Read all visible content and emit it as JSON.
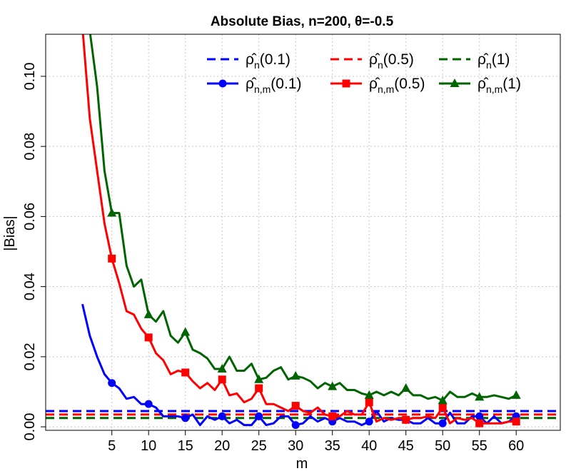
{
  "chart_data": {
    "type": "line",
    "title": "Absolute Bias, n=200, θ=-0.5",
    "xlabel": "m",
    "ylabel": "|Bias|",
    "xlim": [
      -4,
      66
    ],
    "ylim": [
      -0.001,
      0.112
    ],
    "xticks": [
      5,
      10,
      15,
      20,
      25,
      30,
      35,
      40,
      45,
      50,
      55,
      60
    ],
    "yticks": [
      0.0,
      0.02,
      0.04,
      0.06,
      0.08,
      0.1
    ],
    "ytick_labels": [
      "0.00",
      "0.02",
      "0.04",
      "0.06",
      "0.08",
      "0.10"
    ],
    "grid": true,
    "legend_position": "top-right",
    "reference_lines": [
      {
        "name": "(0.1)",
        "symbol": "ρ̂",
        "sub": "n",
        "color": "#0000ff",
        "style": "dashed",
        "value": 0.0045
      },
      {
        "name": "(0.5)",
        "symbol": "ρ̂",
        "sub": "n",
        "color": "#ff0000",
        "style": "dashed",
        "value": 0.0035
      },
      {
        "name": "(1)",
        "symbol": "ρ̂",
        "sub": "n",
        "color": "#006400",
        "style": "dashed",
        "value": 0.0025
      }
    ],
    "series": [
      {
        "name": "(0.1)",
        "symbol": "ρ̂",
        "sub": "n,m",
        "color": "#0000ff",
        "marker": "circle",
        "marker_every": 5,
        "x": [
          1,
          2,
          3,
          4,
          5,
          6,
          7,
          8,
          9,
          10,
          11,
          12,
          13,
          14,
          15,
          16,
          17,
          18,
          19,
          20,
          21,
          22,
          23,
          24,
          25,
          26,
          27,
          28,
          29,
          30,
          31,
          32,
          33,
          34,
          35,
          36,
          37,
          38,
          39,
          40,
          41,
          42,
          43,
          44,
          45,
          46,
          47,
          48,
          49,
          50,
          51,
          52,
          53,
          54,
          55,
          56,
          57,
          58,
          59,
          60
        ],
        "y": [
          0.035,
          0.026,
          0.02,
          0.015,
          0.0125,
          0.011,
          0.008,
          0.0085,
          0.0065,
          0.0065,
          0.0055,
          0.003,
          0.003,
          0.003,
          0.0025,
          0.0035,
          0.0005,
          0.003,
          0.002,
          0.003,
          0.001,
          0.002,
          0.0005,
          0.0005,
          0.003,
          0.0005,
          0.001,
          0.003,
          0.003,
          0.0005,
          0.001,
          0.003,
          0.0015,
          0.0025,
          0.0015,
          0.0025,
          0.0015,
          0.0015,
          0.0005,
          0.0015,
          0.0045,
          0.0015,
          0.0025,
          0.002,
          0.002,
          0.001,
          0.001,
          0.0025,
          0.001,
          0.001,
          0.004,
          0.001,
          0.001,
          0.003,
          0.003,
          0.001,
          0.003,
          0.001,
          0.0015,
          0.003
        ]
      },
      {
        "name": "(0.5)",
        "symbol": "ρ̂",
        "sub": "n,m",
        "color": "#ff0000",
        "marker": "square",
        "marker_every": 5,
        "x": [
          1,
          2,
          3,
          4,
          5,
          6,
          7,
          8,
          9,
          10,
          11,
          12,
          13,
          14,
          15,
          16,
          17,
          18,
          19,
          20,
          21,
          22,
          23,
          24,
          25,
          26,
          27,
          28,
          29,
          30,
          31,
          32,
          33,
          34,
          35,
          36,
          37,
          38,
          39,
          40,
          41,
          42,
          43,
          44,
          45,
          46,
          47,
          48,
          49,
          50,
          51,
          52,
          53,
          54,
          55,
          56,
          57,
          58,
          59,
          60
        ],
        "y": [
          0.114,
          0.088,
          0.073,
          0.058,
          0.048,
          0.041,
          0.033,
          0.032,
          0.028,
          0.0255,
          0.021,
          0.019,
          0.015,
          0.016,
          0.0155,
          0.013,
          0.011,
          0.0125,
          0.0105,
          0.0135,
          0.009,
          0.0095,
          0.007,
          0.008,
          0.011,
          0.0065,
          0.0065,
          0.0055,
          0.0045,
          0.006,
          0.0045,
          0.004,
          0.0055,
          0.0035,
          0.003,
          0.003,
          0.0045,
          0.0035,
          0.0035,
          0.007,
          0.0015,
          0.0025,
          0.002,
          0.0025,
          0.002,
          0.0025,
          0.0025,
          0.003,
          0.0025,
          0.0055,
          0.001,
          0.0025,
          0.002,
          0.0025,
          0.001,
          0.001,
          0.001,
          0.001,
          0.0015,
          0.0015
        ]
      },
      {
        "name": "(1)",
        "symbol": "ρ̂",
        "sub": "n,m",
        "color": "#006400",
        "marker": "triangle",
        "marker_every": 5,
        "x": [
          1,
          2,
          3,
          4,
          5,
          6,
          7,
          8,
          9,
          10,
          11,
          12,
          13,
          14,
          15,
          16,
          17,
          18,
          19,
          20,
          21,
          22,
          23,
          24,
          25,
          26,
          27,
          28,
          29,
          30,
          31,
          32,
          33,
          34,
          35,
          36,
          37,
          38,
          39,
          40,
          41,
          42,
          43,
          44,
          45,
          46,
          47,
          48,
          49,
          50,
          51,
          52,
          53,
          54,
          55,
          56,
          57,
          58,
          59,
          60
        ],
        "y": [
          0.135,
          0.113,
          0.097,
          0.073,
          0.061,
          0.061,
          0.046,
          0.04,
          0.042,
          0.032,
          0.03,
          0.033,
          0.026,
          0.024,
          0.027,
          0.022,
          0.021,
          0.0195,
          0.0165,
          0.0165,
          0.02,
          0.016,
          0.016,
          0.018,
          0.0135,
          0.014,
          0.016,
          0.017,
          0.0135,
          0.0145,
          0.014,
          0.013,
          0.011,
          0.0125,
          0.0115,
          0.0125,
          0.0105,
          0.0105,
          0.0095,
          0.009,
          0.01,
          0.009,
          0.01,
          0.009,
          0.011,
          0.009,
          0.009,
          0.008,
          0.0085,
          0.0075,
          0.01,
          0.0085,
          0.0085,
          0.0095,
          0.0085,
          0.0085,
          0.009,
          0.0085,
          0.008,
          0.009
        ]
      }
    ]
  }
}
